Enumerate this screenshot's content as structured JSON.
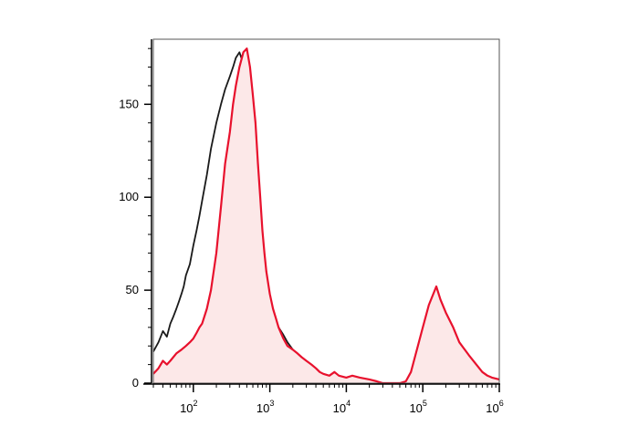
{
  "chart_data": {
    "type": "area",
    "title": "",
    "xlabel": "",
    "ylabel": "",
    "x_scale": "log",
    "xlim": [
      30,
      1000000
    ],
    "ylim": [
      0,
      185
    ],
    "grid": false,
    "legend": "none",
    "y_ticks": [
      0,
      50,
      100,
      150
    ],
    "y_tick_labels": [
      "0",
      "50",
      "100",
      "150"
    ],
    "x_ticks": [
      {
        "value": 100,
        "base": "10",
        "exp": "2"
      },
      {
        "value": 1000,
        "base": "10",
        "exp": "3"
      },
      {
        "value": 10000,
        "base": "10",
        "exp": "4"
      },
      {
        "value": 100000,
        "base": "10",
        "exp": "5"
      },
      {
        "value": 1000000,
        "base": "10",
        "exp": "6"
      }
    ],
    "series": [
      {
        "color": "#1a1a1a",
        "filled": false,
        "x": [
          30,
          35,
          40,
          45,
          50,
          55,
          60,
          65,
          70,
          75,
          80,
          90,
          100,
          110,
          120,
          130,
          150,
          170,
          200,
          230,
          260,
          300,
          330,
          360,
          400,
          450,
          500,
          550,
          600,
          650,
          700,
          750,
          800,
          850,
          900,
          1000,
          1100,
          1200,
          1300,
          1500,
          1700,
          2000,
          2300,
          2600,
          3000,
          3500,
          4000,
          4500,
          5000,
          6000,
          7000,
          8000
        ],
        "y": [
          17,
          22,
          28,
          25,
          32,
          36,
          40,
          44,
          48,
          52,
          58,
          64,
          74,
          82,
          90,
          98,
          112,
          126,
          140,
          150,
          158,
          165,
          170,
          175,
          178,
          172,
          160,
          148,
          130,
          112,
          95,
          80,
          68,
          58,
          50,
          40,
          35,
          32,
          30,
          26,
          22,
          18,
          15,
          12,
          10,
          8,
          6,
          5,
          4,
          3,
          2,
          0
        ]
      },
      {
        "color": "#e8112d",
        "fill": "#fce8e8",
        "filled": true,
        "x": [
          30,
          35,
          40,
          45,
          50,
          60,
          70,
          80,
          90,
          100,
          110,
          120,
          130,
          150,
          170,
          200,
          230,
          260,
          300,
          330,
          360,
          400,
          450,
          500,
          550,
          600,
          650,
          700,
          750,
          800,
          850,
          900,
          1000,
          1100,
          1200,
          1300,
          1500,
          1700,
          2000,
          2300,
          2600,
          3000,
          3500,
          4000,
          4500,
          5000,
          6000,
          7000,
          8000,
          10000,
          12000,
          15000,
          20000,
          25000,
          30000,
          40000,
          50000,
          60000,
          70000,
          80000,
          100000,
          120000,
          150000,
          170000,
          200000,
          250000,
          300000,
          400000,
          500000,
          600000,
          700000,
          800000,
          1000000
        ],
        "y": [
          5,
          8,
          12,
          10,
          12,
          16,
          18,
          20,
          22,
          24,
          27,
          30,
          32,
          40,
          50,
          70,
          95,
          118,
          135,
          150,
          160,
          170,
          178,
          180,
          170,
          155,
          140,
          118,
          100,
          82,
          70,
          60,
          48,
          40,
          35,
          30,
          24,
          20,
          18,
          16,
          14,
          12,
          10,
          8,
          6,
          5,
          4,
          6,
          4,
          3,
          4,
          3,
          2,
          1,
          0,
          0,
          0,
          1,
          6,
          15,
          30,
          42,
          52,
          45,
          38,
          30,
          22,
          15,
          10,
          6,
          4,
          3,
          2
        ]
      }
    ]
  }
}
